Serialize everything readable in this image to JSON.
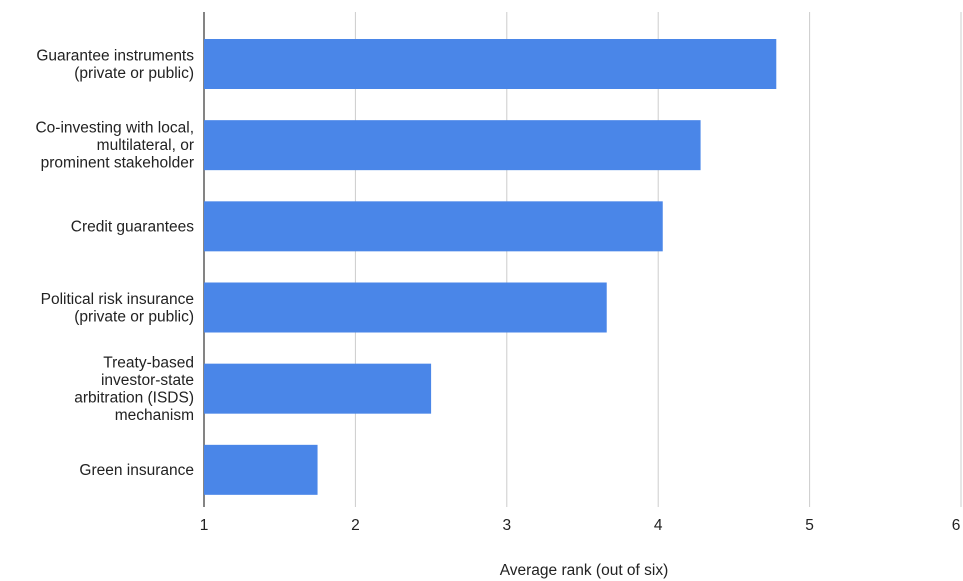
{
  "chart_data": {
    "type": "bar",
    "orientation": "horizontal",
    "title": "",
    "xlabel": "Average rank (out of six)",
    "ylabel": "",
    "xlim": [
      1,
      6
    ],
    "ticks": [
      "1",
      "2",
      "3",
      "4",
      "5",
      "6"
    ],
    "grid": true,
    "legend": "none",
    "bar_color": "#4a86e8",
    "categories": [
      [
        "Guarantee instruments",
        "(private or public)"
      ],
      [
        "Co-investing with local,",
        "multilateral, or",
        "prominent stakeholder"
      ],
      [
        "Credit guarantees"
      ],
      [
        "Political risk insurance",
        "(private or public)"
      ],
      [
        "Treaty-based",
        "investor-state",
        "arbitration (ISDS)",
        "mechanism"
      ],
      [
        "Green insurance"
      ]
    ],
    "values": [
      4.78,
      4.28,
      4.03,
      3.66,
      2.5,
      1.75
    ]
  }
}
